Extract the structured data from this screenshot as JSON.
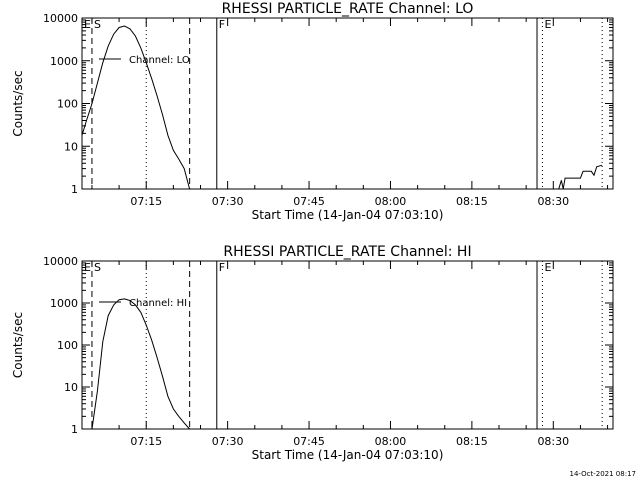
{
  "footer": {
    "timestamp": "14-Oct-2021 08:17"
  },
  "chart_data": [
    {
      "type": "line",
      "title": "RHESSI PARTICLE_RATE Channel: LO",
      "xlabel": "Start Time (14-Jan-04 07:03:10)",
      "ylabel": "Counts/sec",
      "yscale": "log",
      "ylim": [
        1,
        10000
      ],
      "xlim": [
        "07:03:10",
        "08:41:00"
      ],
      "grid": false,
      "x_ticks": [
        "07:15",
        "07:30",
        "07:45",
        "08:00",
        "08:15",
        "08:30"
      ],
      "y_ticks": [
        "1",
        "10",
        "100",
        "1000",
        "10000"
      ],
      "legend": {
        "label": "Channel: LO",
        "placement": "top-left"
      },
      "markers": [
        {
          "letter": "E",
          "time": "07:03:10",
          "style": "solid"
        },
        {
          "letter": "S",
          "time": "07:05:00",
          "style": "dashed"
        },
        {
          "letter": "",
          "time": "07:15:00",
          "style": "dotted"
        },
        {
          "letter": "",
          "time": "07:23:00",
          "style": "dashed"
        },
        {
          "letter": "F",
          "time": "07:28:00",
          "style": "solid"
        },
        {
          "letter": "",
          "time": "08:27:00",
          "style": "solid"
        },
        {
          "letter": "E",
          "time": "08:28:00",
          "style": "dotted"
        },
        {
          "letter": "",
          "time": "08:39:00",
          "style": "dotted"
        }
      ],
      "series": [
        {
          "segments": [
            {
              "x": [
                "07:03:10",
                "07:04:00",
                "07:05:00",
                "07:06:00",
                "07:07:00",
                "07:08:00",
                "07:09:00",
                "07:10:00",
                "07:11:00",
                "07:12:00",
                "07:13:00",
                "07:14:00",
                "07:15:00",
                "07:16:00",
                "07:17:00",
                "07:18:00",
                "07:19:00",
                "07:20:00",
                "07:21:00",
                "07:22:00",
                "07:23:00"
              ],
              "y": [
                18,
                40,
                100,
                300,
                900,
                2200,
                4200,
                6000,
                6500,
                5600,
                3800,
                2000,
                900,
                380,
                150,
                55,
                18,
                8,
                5,
                3,
                1
              ]
            },
            {
              "x": [
                "08:31:00",
                "08:31:30",
                "08:31:50",
                "08:32:10",
                "08:35:00",
                "08:35:30",
                "08:37:00",
                "08:37:30",
                "08:38:00",
                "08:39:00"
              ],
              "y": [
                1,
                1.6,
                1,
                1.8,
                1.8,
                2.6,
                2.6,
                2.1,
                3.3,
                3.6
              ]
            }
          ]
        }
      ]
    },
    {
      "type": "line",
      "title": "RHESSI PARTICLE_RATE Channel: HI",
      "xlabel": "Start Time (14-Jan-04 07:03:10)",
      "ylabel": "Counts/sec",
      "yscale": "log",
      "ylim": [
        1,
        10000
      ],
      "xlim": [
        "07:03:10",
        "08:41:00"
      ],
      "grid": false,
      "x_ticks": [
        "07:15",
        "07:30",
        "07:45",
        "08:00",
        "08:15",
        "08:30"
      ],
      "y_ticks": [
        "1",
        "10",
        "100",
        "1000",
        "10000"
      ],
      "legend": {
        "label": "Channel: HI",
        "placement": "top-left"
      },
      "markers": [
        {
          "letter": "E",
          "time": "07:03:10",
          "style": "solid"
        },
        {
          "letter": "S",
          "time": "07:05:00",
          "style": "dashed"
        },
        {
          "letter": "",
          "time": "07:15:00",
          "style": "dotted"
        },
        {
          "letter": "",
          "time": "07:23:00",
          "style": "dashed"
        },
        {
          "letter": "F",
          "time": "07:28:00",
          "style": "solid"
        },
        {
          "letter": "",
          "time": "08:27:00",
          "style": "solid"
        },
        {
          "letter": "E",
          "time": "08:28:00",
          "style": "dotted"
        },
        {
          "letter": "",
          "time": "08:39:00",
          "style": "dotted"
        }
      ],
      "series": [
        {
          "segments": [
            {
              "x": [
                "07:05:00",
                "07:06:00",
                "07:07:00",
                "07:08:00",
                "07:09:00",
                "07:10:00",
                "07:11:00",
                "07:12:00",
                "07:13:00",
                "07:14:00",
                "07:15:00",
                "07:16:00",
                "07:17:00",
                "07:18:00",
                "07:19:00",
                "07:20:00",
                "07:21:00",
                "07:22:00",
                "07:23:00"
              ],
              "y": [
                1,
                8,
                120,
                500,
                900,
                1200,
                1250,
                1150,
                900,
                600,
                300,
                130,
                50,
                18,
                6,
                3,
                2,
                1.4,
                1
              ]
            }
          ]
        }
      ]
    }
  ]
}
